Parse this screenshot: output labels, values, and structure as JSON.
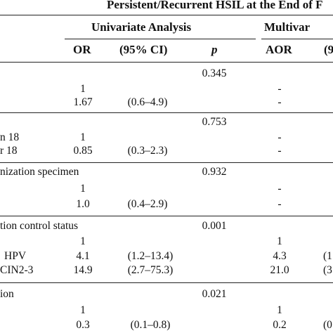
{
  "header": {
    "top_title": "Persistent/Recurrent HSIL at the End of F",
    "univariate_title": "Univariate Analysis",
    "multivariate_title": "Multivar",
    "col_or": "OR",
    "col_ci": "(95% CI)",
    "col_p": "p",
    "col_aor": "AOR",
    "col_ci2_partial": "(9"
  },
  "groups": [
    {
      "label": "",
      "p": "0.345",
      "rows": [
        {
          "label": "",
          "or": "1",
          "ci": "",
          "aor": "-",
          "ci2": ""
        },
        {
          "label": "",
          "or": "1.67",
          "ci": "(0.6–4.9)",
          "aor": "-",
          "ci2": ""
        }
      ]
    },
    {
      "label": "",
      "p": "0.753",
      "rows": [
        {
          "label": "n 18",
          "or": "1",
          "ci": "",
          "aor": "-",
          "ci2": ""
        },
        {
          "label": "r 18",
          "or": "0.85",
          "ci": "(0.3–2.3)",
          "aor": "-",
          "ci2": ""
        }
      ]
    },
    {
      "label": "nization specimen",
      "p": "0.932",
      "rows": [
        {
          "label": "",
          "or": "1",
          "ci": "",
          "aor": "-",
          "ci2": ""
        },
        {
          "label": "",
          "or": "1.0",
          "ci": "(0.4–2.9)",
          "aor": "-",
          "ci2": ""
        }
      ]
    },
    {
      "label": "tion control status",
      "p": "0.001",
      "rows": [
        {
          "label": "",
          "or": "1",
          "ci": "",
          "aor": "1",
          "ci2": ""
        },
        {
          "label": "HPV",
          "or": "4.1",
          "ci": "(1.2–13.4)",
          "aor": "4.3",
          "ci2": "(1"
        },
        {
          "label": "CIN2-3",
          "or": "14.9",
          "ci": "(2.7–75.3)",
          "aor": "21.0",
          "ci2": "(3"
        }
      ]
    },
    {
      "label": "ion",
      "p": "0.021",
      "rows": [
        {
          "label": "",
          "or": "1",
          "ci": "",
          "aor": "1",
          "ci2": ""
        },
        {
          "label": "",
          "or": "0.3",
          "ci": "(0.1–0.8)",
          "aor": "0.2",
          "ci2": "(0"
        }
      ]
    }
  ]
}
